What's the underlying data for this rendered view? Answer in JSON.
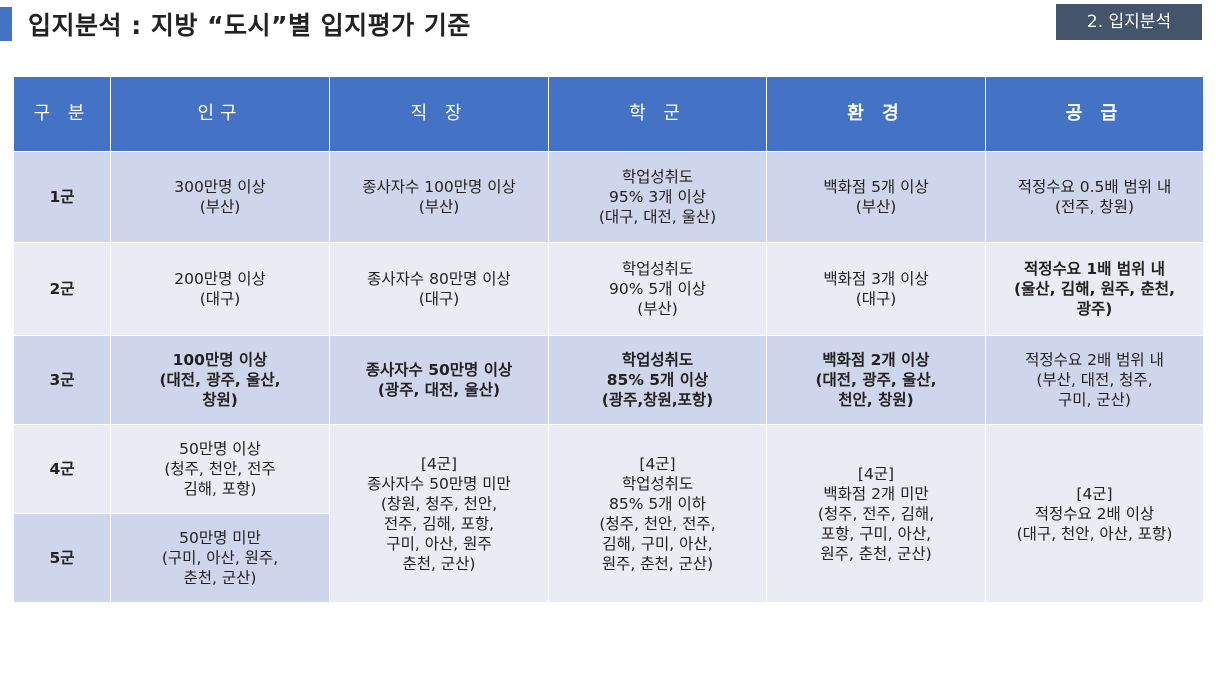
{
  "header": {
    "title": "입지분석 : 지방 “도시”별 입지평가 기준",
    "section": "2. 입지분석"
  },
  "table": {
    "columns": [
      "구 분",
      "인구",
      "직 장",
      "학 군",
      "환 경",
      "공 급"
    ],
    "rows": [
      {
        "group": "1군",
        "population": "300만명 이상\n(부산)",
        "jobs": "종사자수 100만명 이상\n(부산)",
        "school": "학업성취도\n95% 3개 이상\n(대구, 대전, 울산)",
        "environment": "백화점 5개 이상\n(부산)",
        "supply": "적정수요 0.5배 범위 내\n(전주, 창원)"
      },
      {
        "group": "2군",
        "population": "200만명 이상\n(대구)",
        "jobs": "종사자수 80만명 이상\n(대구)",
        "school": "학업성취도\n90% 5개 이상\n(부산)",
        "environment": "백화점 3개 이상\n(대구)",
        "supply": "적정수요 1배 범위 내\n(울산, 김해, 원주, 춘천,\n광주)"
      },
      {
        "group": "3군",
        "population": "100만명 이상\n(대전, 광주, 울산,\n창원)",
        "jobs": "종사자수 50만명 이상\n(광주, 대전, 울산)",
        "school": "학업성취도\n85% 5개 이상\n(광주,창원,포항)",
        "environment": "백화점 2개 이상\n(대전, 광주, 울산,\n천안, 창원)",
        "supply": "적정수요 2배 범위 내\n(부산, 대전, 청주,\n구미, 군산)"
      },
      {
        "group": "4군",
        "population": "50만명 이상\n(청주, 천안, 전주\n김해, 포항)",
        "jobs": "[4군]\n종사자수 50만명 미만\n(창원, 청주, 천안,\n전주, 김해, 포항,\n구미, 아산, 원주\n춘천, 군산)",
        "school": "[4군]\n학업성취도\n85% 5개 이하\n(청주, 천안, 전주,\n김해, 구미, 아산,\n원주, 춘천, 군산)",
        "environment": "[4군]\n백화점 2개 미만\n(청주, 전주, 김해,\n포항, 구미, 아산,\n원주, 춘천, 군산)",
        "supply": "[4군]\n적정수요 2배 이상\n(대구, 천안, 아산, 포항)"
      },
      {
        "group": "5군",
        "population": "50만명 미만\n(구미, 아산, 원주,\n춘천, 군산)"
      }
    ]
  }
}
